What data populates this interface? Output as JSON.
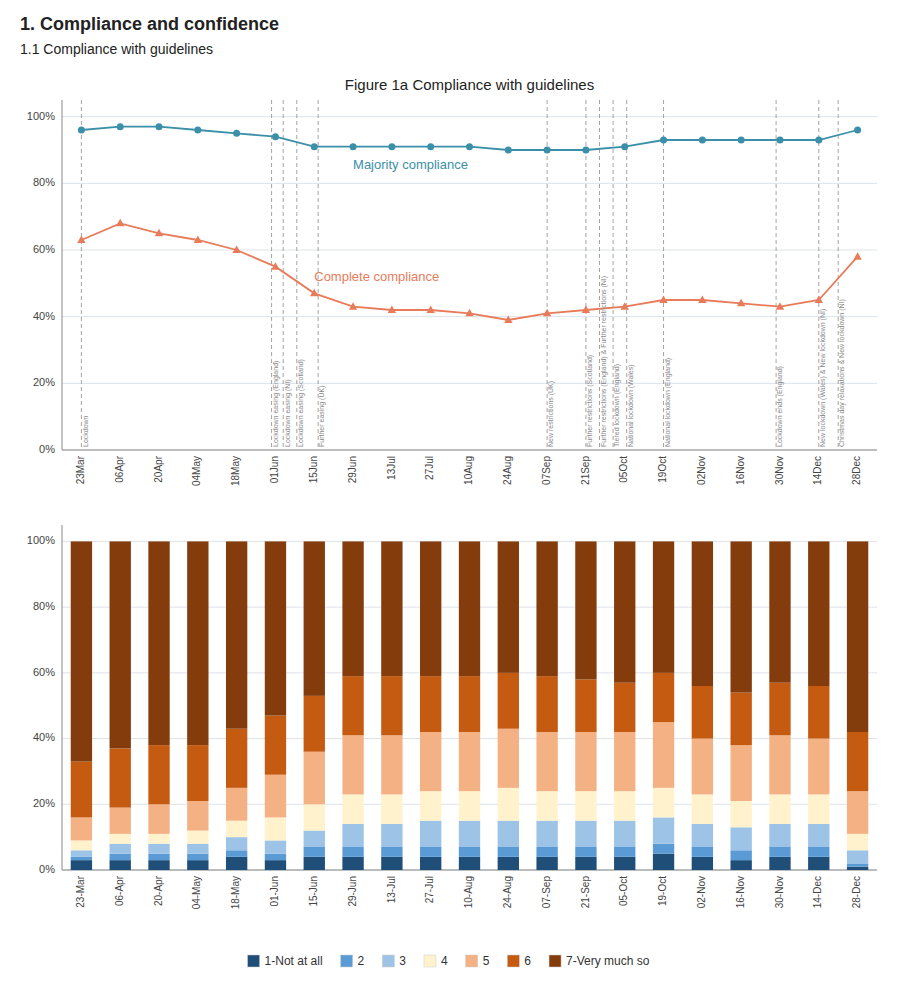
{
  "title": "1. Compliance and confidence",
  "subtitle": "1.1  Compliance with guidelines",
  "chart_data": [
    {
      "type": "line",
      "title": "Figure 1a Compliance with guidelines",
      "categories": [
        "23Mar",
        "06Apr",
        "20Apr",
        "04May",
        "18May",
        "01Jun",
        "15Jun",
        "29Jun",
        "13Jul",
        "27Jul",
        "10Aug",
        "24Aug",
        "07Sep",
        "21Sep",
        "05Oct",
        "19Oct",
        "02Nov",
        "16Nov",
        "30Nov",
        "14Dec",
        "28Dec"
      ],
      "series": [
        {
          "name": "Majority compliance",
          "color": "#3B8FA8",
          "marker": "circle",
          "line_style": "solid",
          "values": [
            96,
            97,
            97,
            96,
            95,
            94,
            91,
            91,
            91,
            91,
            91,
            90,
            90,
            90,
            91,
            93,
            93,
            93,
            93,
            93,
            96
          ]
        },
        {
          "name": "Complete compliance",
          "color": "#E87B5A",
          "marker": "triangle",
          "line_style": "solid",
          "values": [
            63,
            68,
            65,
            63,
            60,
            55,
            47,
            43,
            42,
            42,
            41,
            39,
            41,
            42,
            43,
            45,
            45,
            44,
            43,
            45,
            58
          ]
        }
      ],
      "annotations": [
        {
          "x": 0,
          "text": "Lockdown"
        },
        {
          "x": 4.9,
          "text": "Lockdown easing (England)"
        },
        {
          "x": 5.2,
          "text": "Lockdown easing (NI)"
        },
        {
          "x": 5.55,
          "text": "Lockdown easing (Scotland)"
        },
        {
          "x": 6.1,
          "text": "Further easing (UK)"
        },
        {
          "x": 12.0,
          "text": "New restrictions (UK)"
        },
        {
          "x": 13.0,
          "text": "Further restrictions (Scotland)"
        },
        {
          "x": 13.35,
          "text": "Further restrictions (England) & Further restrictions (NI)"
        },
        {
          "x": 13.7,
          "text": "Tiered lockdown (England)"
        },
        {
          "x": 14.05,
          "text": "National lockdown (Wales)"
        },
        {
          "x": 15.0,
          "text": "National lockdown (England)"
        },
        {
          "x": 17.9,
          "text": "Lockdown ends (England)"
        },
        {
          "x": 19.0,
          "text": "New lockdown (Wales) & New lockdown (NI)"
        },
        {
          "x": 19.5,
          "text": "Christmas day relaxations & New lockdown (NI)"
        }
      ],
      "ylim": [
        0,
        105
      ],
      "yticks": [
        {
          "value": 0,
          "label": "0%"
        },
        {
          "value": 20,
          "label": "20%"
        },
        {
          "value": 40,
          "label": "40%"
        },
        {
          "value": 60,
          "label": "60%"
        },
        {
          "value": 80,
          "label": "80%"
        },
        {
          "value": 100,
          "label": "100%"
        }
      ],
      "grid": true
    },
    {
      "type": "bar",
      "stacked": true,
      "categories": [
        "23-Mar",
        "06-Apr",
        "20-Apr",
        "04-May",
        "18-May",
        "01-Jun",
        "15-Jun",
        "29-Jun",
        "13-Jul",
        "27-Jul",
        "10-Aug",
        "24-Aug",
        "07-Sep",
        "21-Sep",
        "05-Oct",
        "19-Oct",
        "02-Nov",
        "16-Nov",
        "30-Nov",
        "14-Dec",
        "28-Dec"
      ],
      "series": [
        {
          "name": "1-Not at all",
          "color": "#1F4E79",
          "values": [
            3,
            3,
            3,
            3,
            4,
            3,
            4,
            4,
            4,
            4,
            4,
            4,
            4,
            4,
            4,
            5,
            4,
            3,
            4,
            4,
            1
          ]
        },
        {
          "name": "2",
          "color": "#5B9BD5",
          "values": [
            1,
            2,
            2,
            2,
            2,
            2,
            3,
            3,
            3,
            3,
            3,
            3,
            3,
            3,
            3,
            3,
            3,
            3,
            3,
            3,
            1
          ]
        },
        {
          "name": "3",
          "color": "#9DC3E6",
          "values": [
            2,
            3,
            3,
            3,
            4,
            4,
            5,
            7,
            7,
            8,
            8,
            8,
            8,
            8,
            8,
            8,
            7,
            7,
            7,
            7,
            4
          ]
        },
        {
          "name": "4",
          "color": "#FFF2CC",
          "values": [
            3,
            3,
            3,
            4,
            5,
            7,
            8,
            9,
            9,
            9,
            9,
            10,
            9,
            9,
            9,
            9,
            9,
            8,
            9,
            9,
            5
          ]
        },
        {
          "name": "5",
          "color": "#F4B183",
          "values": [
            7,
            8,
            9,
            9,
            10,
            13,
            16,
            18,
            18,
            18,
            18,
            18,
            18,
            18,
            18,
            20,
            17,
            17,
            18,
            17,
            13
          ]
        },
        {
          "name": "6",
          "color": "#C55A11",
          "values": [
            17,
            18,
            18,
            17,
            18,
            18,
            17,
            18,
            18,
            17,
            17,
            17,
            17,
            16,
            15,
            15,
            16,
            16,
            16,
            16,
            18
          ]
        },
        {
          "name": "7-Very much so",
          "color": "#843C0C",
          "values": [
            67,
            63,
            62,
            62,
            57,
            53,
            47,
            41,
            41,
            41,
            41,
            40,
            41,
            42,
            43,
            40,
            44,
            46,
            43,
            44,
            58
          ]
        }
      ],
      "ylim": [
        0,
        105
      ],
      "yticks": [
        {
          "value": 0,
          "label": "0%"
        },
        {
          "value": 20,
          "label": "20%"
        },
        {
          "value": 40,
          "label": "40%"
        },
        {
          "value": 60,
          "label": "60%"
        },
        {
          "value": 80,
          "label": "80%"
        },
        {
          "value": 100,
          "label": "100%"
        }
      ],
      "grid": true,
      "legend": "bottom"
    }
  ]
}
